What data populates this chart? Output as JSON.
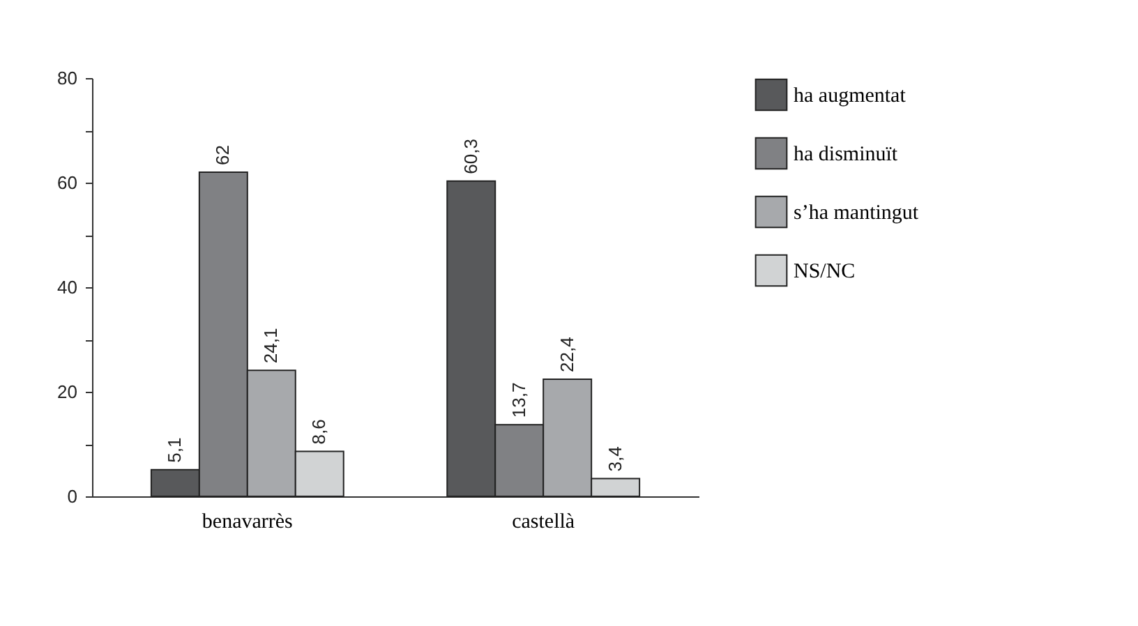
{
  "chart_data": {
    "type": "bar",
    "categories": [
      "benavarrès",
      "castellà"
    ],
    "series": [
      {
        "name": "ha augmentat",
        "color": "#58595b",
        "values": [
          5.1,
          60.3
        ],
        "value_labels": [
          "5,1",
          "60,3"
        ]
      },
      {
        "name": "ha disminuït",
        "color": "#808184",
        "values": [
          62,
          13.7
        ],
        "value_labels": [
          "62",
          "13,7"
        ]
      },
      {
        "name": "s’ha mantingut",
        "color": "#a7a9ac",
        "values": [
          24.1,
          22.4
        ],
        "value_labels": [
          "24,1",
          "22,4"
        ]
      },
      {
        "name": "NS/NC",
        "color": "#d1d3d4",
        "values": [
          8.6,
          3.4
        ],
        "value_labels": [
          "8,6",
          "3,4"
        ]
      }
    ],
    "ylim": [
      0,
      80
    ],
    "yticks": [
      0,
      {
        "value": 10,
        "label": null
      },
      20,
      {
        "value": 30,
        "label": null
      },
      40,
      {
        "value": 50,
        "label": null
      },
      60,
      {
        "value": 70,
        "label": null
      },
      80
    ],
    "grid": false,
    "legend": "right"
  }
}
